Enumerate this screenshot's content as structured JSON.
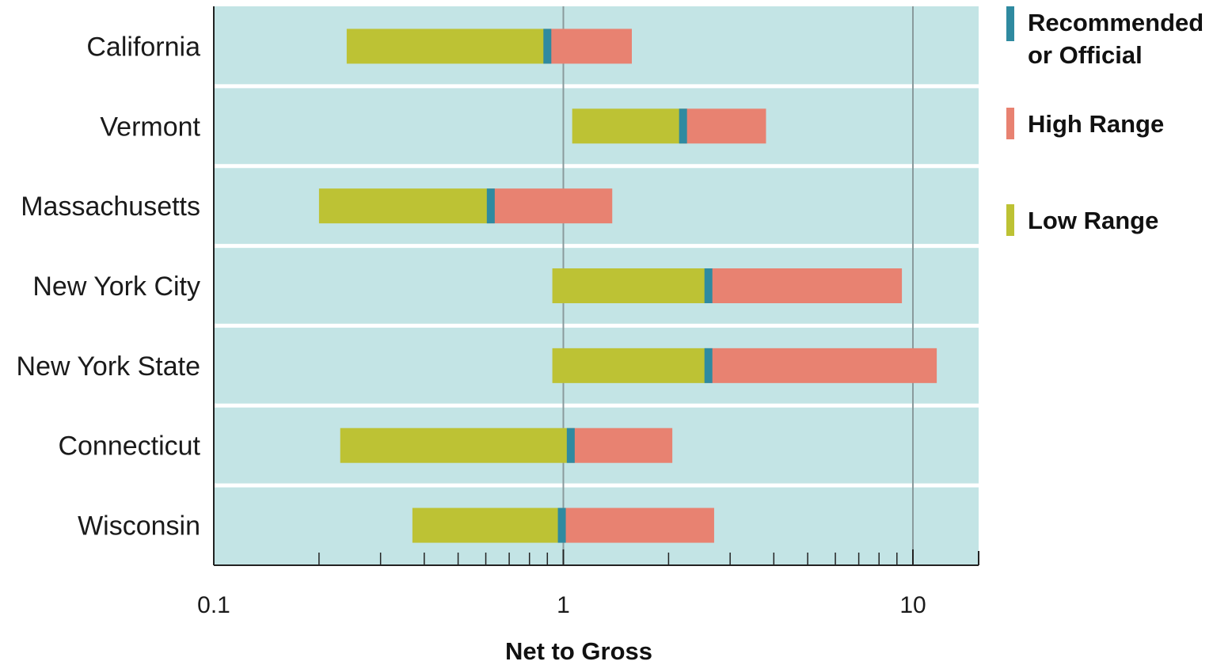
{
  "chart_data": {
    "type": "bar",
    "subtype": "floating-range-bar",
    "xscale": "log",
    "xlim": [
      0.1,
      14
    ],
    "xlabel": "Net to Gross",
    "ylabel": "",
    "title": "",
    "xticks": [
      {
        "value": 0.1,
        "label": "0.1"
      },
      {
        "value": 1,
        "label": "1"
      },
      {
        "value": 10,
        "label": "10"
      }
    ],
    "grid": "vertical lines at 1 and 10",
    "legend_position": "right",
    "categories": [
      "California",
      "Vermont",
      "Massachusetts",
      "New York City",
      "New York State",
      "Connecticut",
      "Wisconsin"
    ],
    "series": [
      {
        "name": "Low Range",
        "color": "#bdc234",
        "from": "low",
        "to": "recommended"
      },
      {
        "name": "High Range",
        "color": "#e88271",
        "from": "recommended",
        "to": "high"
      },
      {
        "name": "Recommended or Official",
        "color": "#2f8aa0",
        "at": "recommended"
      }
    ],
    "rows": [
      {
        "category": "California",
        "low": 0.24,
        "recommended": 0.9,
        "high": 1.57
      },
      {
        "category": "Vermont",
        "low": 1.06,
        "recommended": 2.2,
        "high": 3.8
      },
      {
        "category": "Massachusetts",
        "low": 0.2,
        "recommended": 0.62,
        "high": 1.38
      },
      {
        "category": "New York City",
        "low": 0.93,
        "recommended": 2.6,
        "high": 9.3
      },
      {
        "category": "New York State",
        "low": 0.93,
        "recommended": 2.6,
        "high": 11.7
      },
      {
        "category": "Connecticut",
        "low": 0.23,
        "recommended": 1.05,
        "high": 2.05
      },
      {
        "category": "Wisconsin",
        "low": 0.37,
        "recommended": 0.99,
        "high": 2.7
      }
    ],
    "legend": [
      {
        "key": "recommended",
        "lines": [
          "Recommended",
          "or Official"
        ],
        "color": "#2f8aa0"
      },
      {
        "key": "high",
        "lines": [
          "High Range"
        ],
        "color": "#e88271"
      },
      {
        "key": "low",
        "lines": [
          "Low Range"
        ],
        "color": "#bdc234"
      }
    ],
    "colors": {
      "plot_background": "#c3e4e5",
      "row_separator": "#ffffff",
      "gridline": "#8a9a9c",
      "axis": "#222222"
    }
  }
}
